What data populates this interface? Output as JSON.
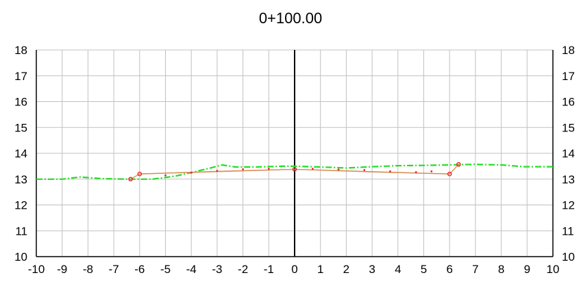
{
  "chart_data": {
    "type": "line",
    "title": "0+100.00",
    "xlabel": "",
    "ylabel": "",
    "xlim": [
      -10,
      10
    ],
    "ylim": [
      10,
      18
    ],
    "x_ticks": [
      -10,
      -9,
      -8,
      -7,
      -6,
      -5,
      -4,
      -3,
      -2,
      -1,
      0,
      1,
      2,
      3,
      4,
      5,
      6,
      7,
      8,
      9,
      10
    ],
    "y_ticks": [
      10,
      11,
      12,
      13,
      14,
      15,
      16,
      17,
      18
    ],
    "grid": true,
    "right_axis_labels": true,
    "center_line_x": 0,
    "colors": {
      "ground": "#22dd22",
      "design": "#d98a50",
      "markers": "#ee2222",
      "grid": "#c0c0c0",
      "axis": "#000000"
    },
    "series": [
      {
        "style": "dash-dot",
        "color": "#22dd22",
        "points": [
          [
            -10,
            13.0
          ],
          [
            -9,
            13.0
          ],
          [
            -8.3,
            13.08
          ],
          [
            -7.5,
            13.02
          ],
          [
            -6.5,
            13.0
          ],
          [
            -5.5,
            13.0
          ],
          [
            -4.6,
            13.12
          ],
          [
            -3.8,
            13.3
          ],
          [
            -3.3,
            13.42
          ],
          [
            -2.8,
            13.55
          ],
          [
            -2.3,
            13.47
          ],
          [
            -1.5,
            13.47
          ],
          [
            -0.5,
            13.5
          ],
          [
            0.0,
            13.5
          ],
          [
            1.0,
            13.47
          ],
          [
            2.0,
            13.43
          ],
          [
            3.0,
            13.48
          ],
          [
            4.0,
            13.52
          ],
          [
            5.0,
            13.53
          ],
          [
            6.0,
            13.55
          ],
          [
            7.0,
            13.57
          ],
          [
            8.0,
            13.55
          ],
          [
            8.9,
            13.48
          ],
          [
            10.0,
            13.48
          ]
        ]
      },
      {
        "style": "solid",
        "color": "#d98a50",
        "points": [
          [
            -6.35,
            13.0
          ],
          [
            -6.0,
            13.2
          ],
          [
            0.0,
            13.38
          ],
          [
            6.0,
            13.2
          ],
          [
            6.35,
            13.57
          ]
        ]
      },
      {
        "style": "solid",
        "color": "#d98a50",
        "points": [
          [
            -6.0,
            13.2
          ],
          [
            -3.0,
            13.3
          ],
          [
            0.0,
            13.38
          ],
          [
            3.0,
            13.28
          ],
          [
            6.0,
            13.2
          ]
        ]
      },
      {
        "style": "markers",
        "color": "#ee2222",
        "points": [
          [
            -6.35,
            13.0
          ],
          [
            -6.0,
            13.2
          ],
          [
            -5.0,
            13.15
          ],
          [
            -4.0,
            13.25
          ],
          [
            -3.0,
            13.32
          ],
          [
            -2.0,
            13.38
          ],
          [
            -1.0,
            13.4
          ],
          [
            0.0,
            13.38
          ],
          [
            0.7,
            13.4
          ],
          [
            1.7,
            13.37
          ],
          [
            2.7,
            13.35
          ],
          [
            3.7,
            13.3
          ],
          [
            4.7,
            13.27
          ],
          [
            5.3,
            13.3
          ],
          [
            6.0,
            13.2
          ],
          [
            6.35,
            13.57
          ]
        ]
      }
    ]
  }
}
